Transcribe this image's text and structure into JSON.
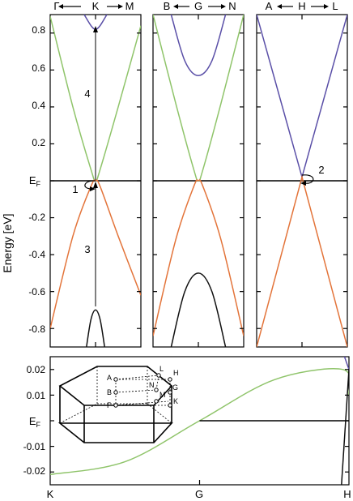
{
  "figure": {
    "y_axis_label": "Energy [eV]"
  },
  "colors": {
    "conduction": "#8fc46a",
    "valence": "#e3743a",
    "upper": "#5a4fa7",
    "lower": "#111111",
    "axis": "#000000"
  },
  "chart_data": [
    {
      "type": "line",
      "panel": "left",
      "x_labels": [
        "Γ",
        "K",
        "M"
      ],
      "ylim": [
        -0.9,
        0.9
      ],
      "y_ticks": [
        "0.8",
        "0.6",
        "0.4",
        "0.2",
        "EF",
        "-0.2",
        "-0.4",
        "-0.6",
        "-0.8"
      ],
      "y_tick_values": [
        0.8,
        0.6,
        0.4,
        0.2,
        0,
        -0.2,
        -0.4,
        -0.6,
        -0.8
      ],
      "fermi_level": 0,
      "annotations": [
        "4",
        "3",
        "1"
      ],
      "series": [
        {
          "role": "conduction",
          "x": [
            -1,
            -0.5,
            -0.1,
            0,
            0.1,
            0.5,
            1
          ],
          "y": [
            0.89,
            0.4,
            0.06,
            0.0,
            0.06,
            0.4,
            0.84
          ]
        },
        {
          "role": "valence",
          "x": [
            -1,
            -0.5,
            -0.1,
            0,
            0.1,
            0.5,
            1
          ],
          "y": [
            -0.8,
            -0.3,
            -0.03,
            0.0,
            -0.03,
            -0.3,
            -0.62
          ]
        },
        {
          "role": "upper",
          "x": [
            -0.25,
            -0.1,
            0,
            0.1,
            0.25
          ],
          "y": [
            0.9,
            0.84,
            0.82,
            0.84,
            0.9
          ]
        },
        {
          "role": "lower",
          "x": [
            -0.2,
            -0.1,
            0,
            0.1,
            0.2
          ],
          "y": [
            -0.9,
            -0.75,
            -0.7,
            -0.75,
            -0.9
          ]
        }
      ]
    },
    {
      "type": "line",
      "panel": "middle",
      "x_labels": [
        "B",
        "G",
        "N"
      ],
      "ylim": [
        -0.9,
        0.9
      ],
      "fermi_level": 0,
      "series": [
        {
          "role": "conduction",
          "x": [
            -1,
            -0.5,
            -0.1,
            0,
            0.1,
            0.5,
            1
          ],
          "y": [
            0.9,
            0.42,
            0.06,
            0.0,
            0.06,
            0.42,
            0.9
          ]
        },
        {
          "role": "valence",
          "x": [
            -1,
            -0.5,
            -0.1,
            0,
            0.1,
            0.5,
            1
          ],
          "y": [
            -0.84,
            -0.32,
            -0.03,
            0.0,
            -0.03,
            -0.32,
            -0.84
          ]
        },
        {
          "role": "upper",
          "x": [
            -0.6,
            -0.3,
            0,
            0.3,
            0.6
          ],
          "y": [
            0.9,
            0.65,
            0.57,
            0.65,
            0.9
          ]
        },
        {
          "role": "lower",
          "x": [
            -0.6,
            -0.3,
            0,
            0.3,
            0.6
          ],
          "y": [
            -0.9,
            -0.6,
            -0.5,
            -0.6,
            -0.9
          ]
        }
      ]
    },
    {
      "type": "line",
      "panel": "right",
      "x_labels": [
        "A",
        "H",
        "L"
      ],
      "ylim": [
        -0.9,
        0.9
      ],
      "fermi_level": 0,
      "annotations": [
        "2"
      ],
      "series": [
        {
          "role": "upper",
          "x": [
            -1,
            0,
            1
          ],
          "y": [
            0.9,
            0.02,
            0.9
          ]
        },
        {
          "role": "valence",
          "x": [
            -1,
            0,
            1
          ],
          "y": [
            -0.9,
            0.02,
            -0.9
          ]
        }
      ]
    },
    {
      "type": "line",
      "panel": "bottom",
      "x_labels": [
        "K",
        "G",
        "H"
      ],
      "ylim": [
        -0.025,
        0.025
      ],
      "y_ticks": [
        "0.02",
        "0.01",
        "EF",
        "-0.01",
        "-0.02"
      ],
      "y_tick_values": [
        0.02,
        0.01,
        0,
        -0.01,
        -0.02
      ],
      "fermi_level": 0,
      "series": [
        {
          "role": "conduction",
          "x": [
            0,
            0.25,
            0.5,
            0.75,
            0.98,
            1
          ],
          "y": [
            -0.021,
            -0.016,
            0.0,
            0.016,
            0.02,
            0.01
          ]
        },
        {
          "role": "fermi-segment",
          "x": [
            0.5,
            1
          ],
          "y": [
            0.0,
            0.0
          ]
        },
        {
          "role": "upper",
          "x": [
            0.985,
            1
          ],
          "y": [
            0.025,
            0.02
          ]
        },
        {
          "role": "lower",
          "x": [
            0.975,
            1
          ],
          "y": [
            -0.025,
            0.02
          ]
        }
      ]
    }
  ],
  "inset": {
    "labels": [
      "L",
      "H",
      "A",
      "N",
      "G",
      "B",
      "M",
      "Γ",
      "K"
    ]
  }
}
